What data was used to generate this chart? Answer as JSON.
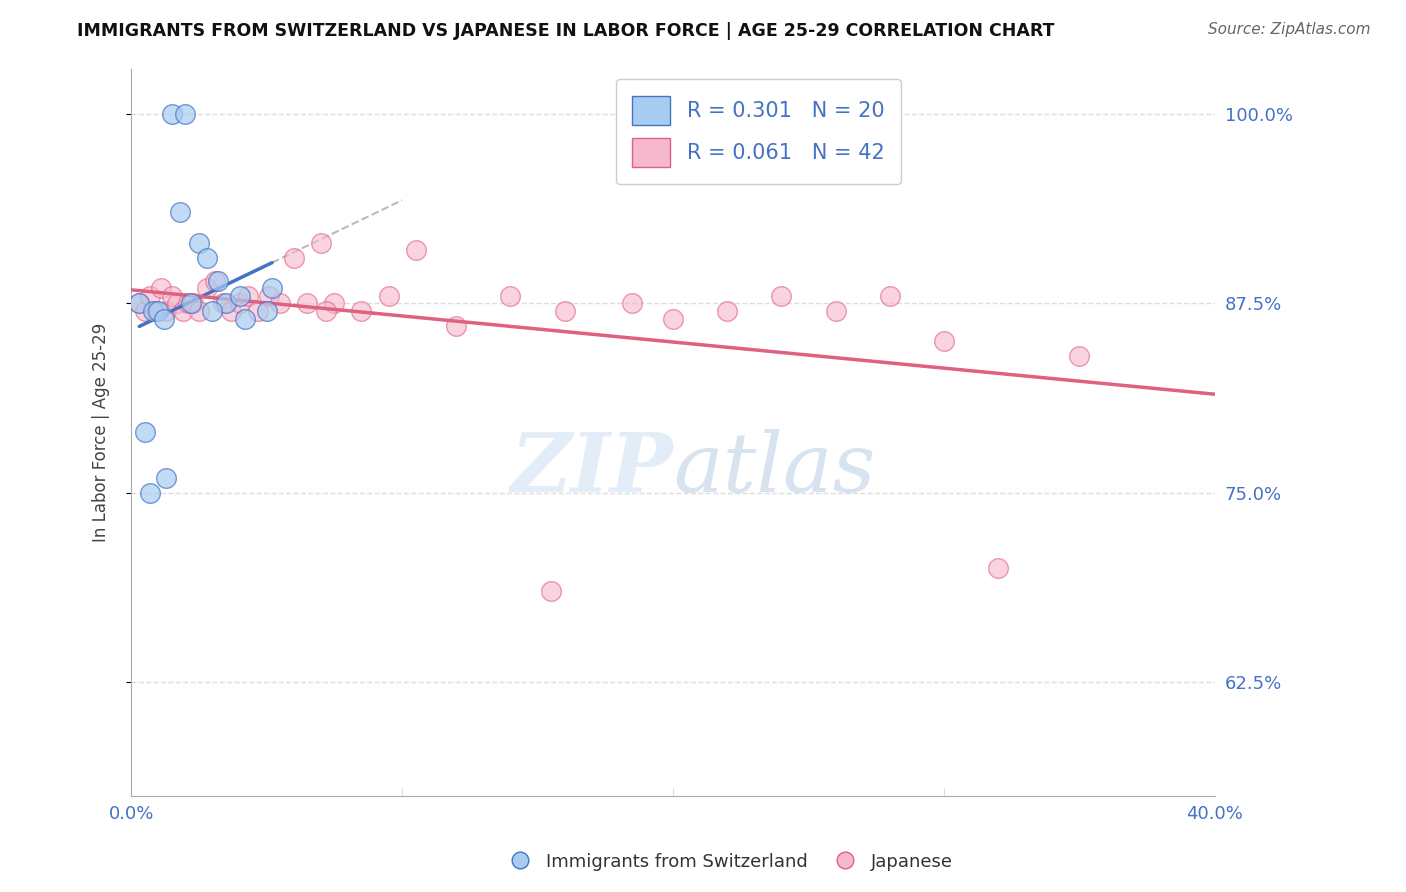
{
  "title": "IMMIGRANTS FROM SWITZERLAND VS JAPANESE IN LABOR FORCE | AGE 25-29 CORRELATION CHART",
  "source": "Source: ZipAtlas.com",
  "ylabel": "In Labor Force | Age 25-29",
  "xlabel": "",
  "xlim": [
    0.0,
    40.0
  ],
  "ylim": [
    55.0,
    103.0
  ],
  "yticks": [
    62.5,
    75.0,
    87.5,
    100.0
  ],
  "ytick_labels": [
    "62.5%",
    "75.0%",
    "87.5%",
    "100.0%"
  ],
  "xticks": [
    0.0,
    10.0,
    20.0,
    30.0,
    40.0
  ],
  "xtick_labels": [
    "0.0%",
    "",
    "",
    "",
    "40.0%"
  ],
  "swiss_color": "#A8CCF0",
  "japanese_color": "#F5B8CC",
  "swiss_line_color": "#4472C4",
  "japanese_line_color": "#E06080",
  "R_swiss": 0.301,
  "N_swiss": 20,
  "R_japanese": 0.061,
  "N_japanese": 42,
  "swiss_x": [
    0.3,
    1.5,
    2.0,
    1.8,
    2.5,
    2.8,
    3.2,
    3.5,
    4.0,
    4.2,
    5.0,
    5.2,
    0.8,
    1.0,
    1.2,
    2.2,
    3.0,
    0.5,
    0.7,
    1.3
  ],
  "swiss_y": [
    87.5,
    100.0,
    100.0,
    93.5,
    91.5,
    90.5,
    89.0,
    87.5,
    88.0,
    86.5,
    87.0,
    88.5,
    87.0,
    87.0,
    86.5,
    87.5,
    87.0,
    79.0,
    75.0,
    76.0
  ],
  "japanese_x": [
    0.3,
    0.5,
    0.7,
    0.9,
    1.1,
    1.3,
    1.5,
    1.7,
    1.9,
    2.1,
    2.3,
    2.5,
    2.8,
    3.1,
    3.4,
    3.7,
    4.0,
    4.3,
    4.7,
    5.1,
    5.5,
    6.0,
    6.5,
    7.0,
    7.5,
    8.5,
    9.5,
    10.5,
    12.0,
    14.0,
    16.0,
    18.5,
    20.0,
    22.0,
    24.0,
    26.0,
    28.0,
    30.0,
    32.0,
    35.0,
    7.2,
    15.5
  ],
  "japanese_y": [
    87.5,
    87.0,
    88.0,
    87.0,
    88.5,
    87.0,
    88.0,
    87.5,
    87.0,
    87.5,
    87.5,
    87.0,
    88.5,
    89.0,
    87.5,
    87.0,
    87.5,
    88.0,
    87.0,
    88.0,
    87.5,
    90.5,
    87.5,
    91.5,
    87.5,
    87.0,
    88.0,
    91.0,
    86.0,
    88.0,
    87.0,
    87.5,
    86.5,
    87.0,
    88.0,
    87.0,
    88.0,
    85.0,
    70.0,
    84.0,
    87.0,
    68.5
  ],
  "watermark_zip": "ZIP",
  "watermark_atlas": "atlas",
  "background_color": "#FFFFFF",
  "grid_color": "#DDDDDD",
  "tick_color": "#4472C4",
  "dashed_line_color": "#BBBBBB"
}
